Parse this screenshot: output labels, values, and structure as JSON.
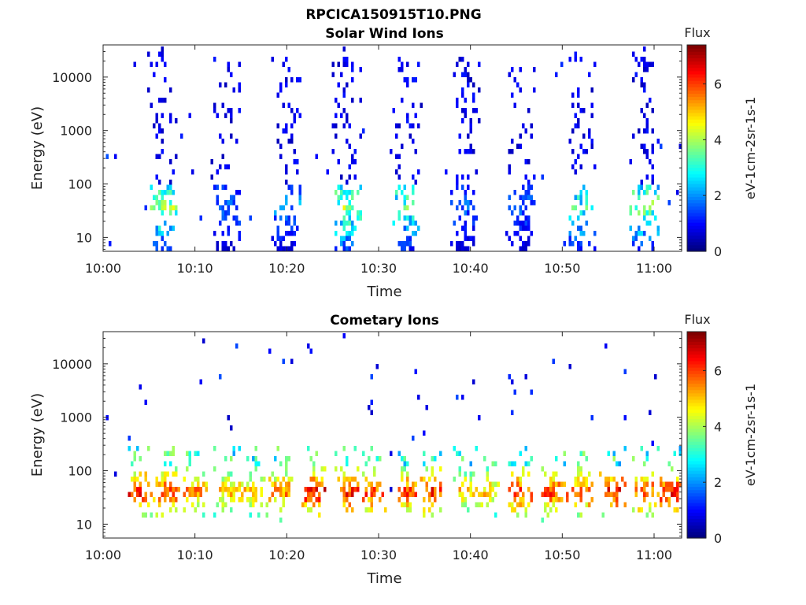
{
  "figure": {
    "title": "RPCICA150915T10.PNG"
  },
  "chart_data": [
    {
      "type": "heatmap",
      "title": "Solar Wind Ions",
      "xlabel": "Time",
      "ylabel": "Energy (eV)",
      "x_range_minutes": [
        0,
        63
      ],
      "x_ticks": [
        {
          "value": 0,
          "label": "10:00"
        },
        {
          "value": 10,
          "label": "10:10"
        },
        {
          "value": 20,
          "label": "10:20"
        },
        {
          "value": 30,
          "label": "10:30"
        },
        {
          "value": 40,
          "label": "10:40"
        },
        {
          "value": 50,
          "label": "10:50"
        },
        {
          "value": 60,
          "label": "11:00"
        }
      ],
      "y_scale": "log",
      "y_range": [
        5.5,
        40000
      ],
      "y_ticks": [
        {
          "value": 10,
          "label": "10"
        },
        {
          "value": 100,
          "label": "100"
        },
        {
          "value": 1000,
          "label": "1000"
        },
        {
          "value": 10000,
          "label": "10000"
        }
      ],
      "colorbar": {
        "title": "Flux",
        "label": "eV-1cm-2sr-1s-1",
        "range": [
          0,
          7.4
        ],
        "ticks": [
          0,
          2,
          4,
          6
        ],
        "colormap": "jet"
      },
      "bursts": [
        {
          "center_min": 6.5,
          "peak_flux": 4.5
        },
        {
          "center_min": 13.5,
          "peak_flux": 2.0
        },
        {
          "center_min": 20,
          "peak_flux": 2.5
        },
        {
          "center_min": 26.5,
          "peak_flux": 4.8
        },
        {
          "center_min": 33,
          "peak_flux": 4.0
        },
        {
          "center_min": 39.5,
          "peak_flux": 2.0
        },
        {
          "center_min": 45.5,
          "peak_flux": 2.0
        },
        {
          "center_min": 52,
          "peak_flux": 3.8
        },
        {
          "center_min": 59,
          "peak_flux": 4.5
        }
      ]
    },
    {
      "type": "heatmap",
      "title": "Cometary Ions",
      "xlabel": "Time",
      "ylabel": "Energy (eV)",
      "x_range_minutes": [
        0,
        63
      ],
      "x_ticks": [
        {
          "value": 0,
          "label": "10:00"
        },
        {
          "value": 10,
          "label": "10:10"
        },
        {
          "value": 20,
          "label": "10:20"
        },
        {
          "value": 30,
          "label": "10:30"
        },
        {
          "value": 40,
          "label": "10:40"
        },
        {
          "value": 50,
          "label": "10:50"
        },
        {
          "value": 60,
          "label": "11:00"
        }
      ],
      "y_scale": "log",
      "y_range": [
        5.5,
        40000
      ],
      "y_ticks": [
        {
          "value": 10,
          "label": "10"
        },
        {
          "value": 100,
          "label": "100"
        },
        {
          "value": 1000,
          "label": "1000"
        },
        {
          "value": 10000,
          "label": "10000"
        }
      ],
      "colorbar": {
        "title": "Flux",
        "label": "eV-1cm-2sr-1s-1",
        "range": [
          0,
          7.4
        ],
        "ticks": [
          0,
          2,
          4,
          6
        ],
        "colormap": "jet"
      },
      "bursts": [
        {
          "center_min": 4,
          "peak_flux": 6.8
        },
        {
          "center_min": 7,
          "peak_flux": 6.5
        },
        {
          "center_min": 10,
          "peak_flux": 6.0
        },
        {
          "center_min": 13.5,
          "peak_flux": 5.5
        },
        {
          "center_min": 16.5,
          "peak_flux": 5.5
        },
        {
          "center_min": 19.5,
          "peak_flux": 6.0
        },
        {
          "center_min": 23,
          "peak_flux": 7.0
        },
        {
          "center_min": 26.5,
          "peak_flux": 6.8
        },
        {
          "center_min": 29.5,
          "peak_flux": 6.5
        },
        {
          "center_min": 33,
          "peak_flux": 6.5
        },
        {
          "center_min": 36,
          "peak_flux": 6.8
        },
        {
          "center_min": 39.5,
          "peak_flux": 5.5
        },
        {
          "center_min": 42,
          "peak_flux": 5.5
        },
        {
          "center_min": 45.5,
          "peak_flux": 6.5
        },
        {
          "center_min": 49,
          "peak_flux": 6.5
        },
        {
          "center_min": 52,
          "peak_flux": 6.5
        },
        {
          "center_min": 55.5,
          "peak_flux": 7.0
        },
        {
          "center_min": 59,
          "peak_flux": 6.5
        },
        {
          "center_min": 62,
          "peak_flux": 6.8
        }
      ]
    }
  ]
}
